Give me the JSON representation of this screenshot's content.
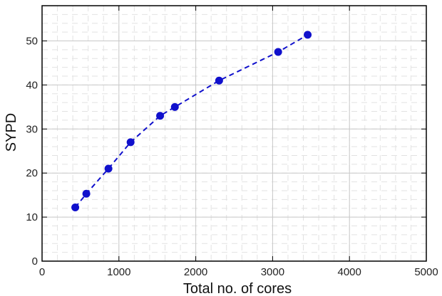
{
  "chart_data": {
    "type": "scatter",
    "title": "",
    "xlabel": "Total no. of cores",
    "ylabel": "SYPD",
    "xlim": [
      0,
      5000
    ],
    "ylim": [
      0,
      58
    ],
    "xticks": [
      0,
      1000,
      2000,
      3000,
      4000,
      5000
    ],
    "yticks": [
      0,
      10,
      20,
      30,
      40,
      50
    ],
    "xtick_labels": [
      "0",
      "1000",
      "2000",
      "3000",
      "4000",
      "5000"
    ],
    "ytick_labels": [
      "0",
      "10",
      "20",
      "30",
      "40",
      "50"
    ],
    "grid": true,
    "minor_grid": true,
    "legend": "none",
    "series": [
      {
        "color": "#1010cc",
        "line_style": "dashed",
        "marker": "circle",
        "x": [
          432,
          576,
          864,
          1152,
          1536,
          1728,
          2304,
          3072,
          3456
        ],
        "y": [
          12.2,
          15.3,
          21.0,
          27.0,
          33.0,
          35.0,
          41.0,
          47.5,
          51.4
        ]
      }
    ]
  }
}
